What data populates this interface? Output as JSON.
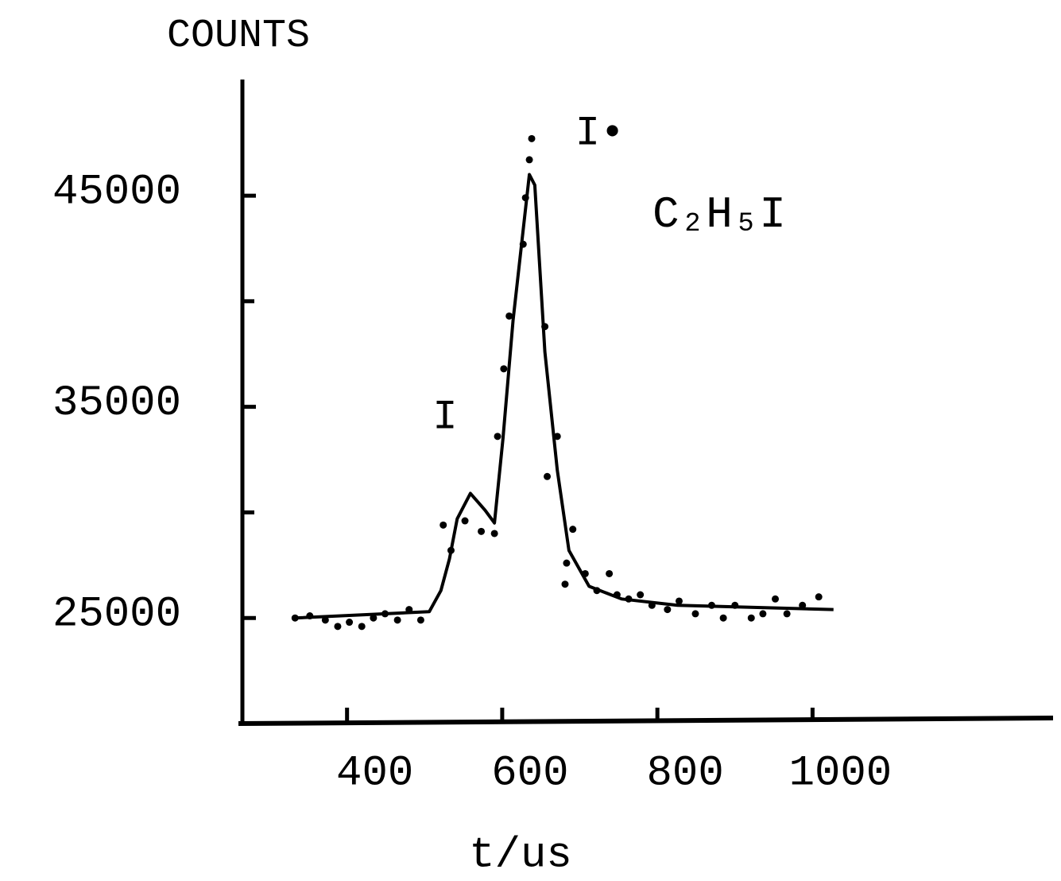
{
  "chart_data": {
    "type": "scatter",
    "y_label": "COUNTS",
    "x_label": "t/us",
    "annotations": [
      "I",
      "I•",
      "C₂H₅I"
    ],
    "xlim": [
      260,
      1310
    ],
    "ylim": [
      20000,
      50500
    ],
    "xticks": [
      400,
      600,
      800,
      1000
    ],
    "yticks": [
      25000,
      35000,
      45000
    ],
    "yminor_ticks": [
      30000,
      40000
    ],
    "color": "#000000",
    "series": [
      {
        "kind": "points",
        "x": [
          333,
          352,
          372,
          388,
          403,
          419,
          434,
          449,
          465,
          480,
          495,
          524,
          534,
          552,
          573,
          590,
          594,
          602,
          609,
          627,
          630,
          635,
          638,
          655,
          658,
          671,
          681,
          683,
          691,
          707,
          722,
          738,
          748,
          763,
          778,
          793,
          813,
          828,
          849,
          870,
          885,
          900,
          921,
          936,
          952,
          967,
          987,
          1008
        ],
        "values": [
          25000,
          25100,
          24900,
          24600,
          24800,
          24600,
          25000,
          25200,
          24900,
          25400,
          24900,
          29400,
          28200,
          29600,
          29100,
          29000,
          33600,
          36800,
          39300,
          42700,
          44900,
          46700,
          47700,
          38800,
          31700,
          33600,
          26600,
          27600,
          29200,
          27100,
          26300,
          27100,
          26100,
          25900,
          26100,
          25600,
          25400,
          25800,
          25200,
          25600,
          25000,
          25600,
          25000,
          25200,
          25900,
          25200,
          25600,
          26000
        ]
      },
      {
        "kind": "fit",
        "x": [
          333,
          506,
          521,
          532,
          542,
          559,
          578,
          590,
          601,
          614,
          635,
          642,
          655,
          671,
          686,
          712,
          754,
          826,
          1027
        ],
        "values": [
          25000,
          25300,
          26300,
          27800,
          29700,
          30900,
          30100,
          29500,
          33500,
          39100,
          46000,
          45500,
          37600,
          32000,
          28200,
          26500,
          25900,
          25600,
          25400
        ]
      }
    ]
  }
}
